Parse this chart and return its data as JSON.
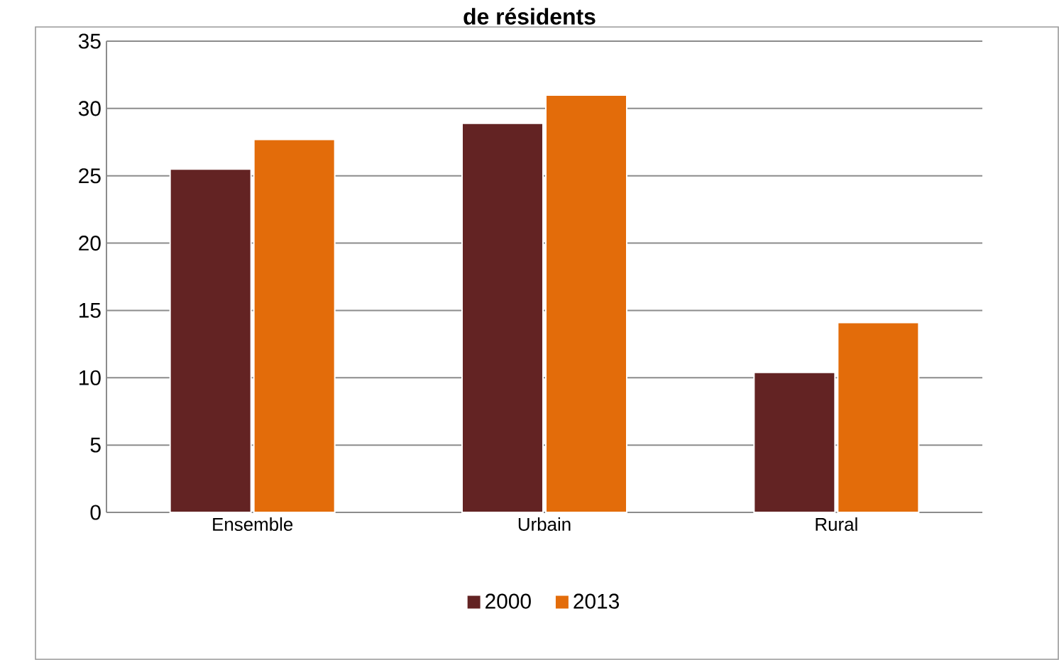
{
  "chart_data": {
    "type": "bar",
    "title": "de résidents",
    "categories": [
      "Ensemble",
      "Urbain",
      "Rural"
    ],
    "series": [
      {
        "name": "2000",
        "color": "#632323",
        "values": [
          25.5,
          28.9,
          10.4
        ]
      },
      {
        "name": "2013",
        "color": "#e36c0a",
        "values": [
          27.7,
          31,
          14.1
        ]
      }
    ],
    "ylim": [
      0,
      35
    ],
    "yticks": [
      0,
      5,
      10,
      15,
      20,
      25,
      30,
      35
    ],
    "grid": "y",
    "legend": "bottom"
  }
}
